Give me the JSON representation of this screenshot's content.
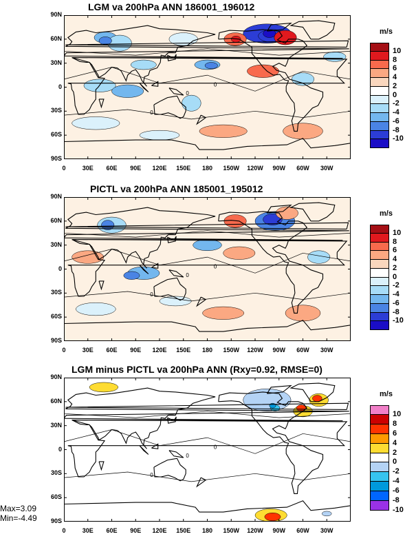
{
  "panels": [
    {
      "title": "LGM va 200hPa ANN 186001_196012",
      "scale": "diverging",
      "chart_data": {
        "type": "contour-map",
        "variable": "meridional wind (va) at 200hPa",
        "season": "ANN",
        "units": "m/s",
        "xlim": [
          "0",
          "360"
        ],
        "ylim": [
          "90S",
          "90N"
        ],
        "contour_levels": [
          -10,
          -8,
          -6,
          -4,
          -2,
          0,
          2,
          4,
          6,
          8,
          10
        ],
        "colorbar_labels": [
          "10",
          "8",
          "6",
          "4",
          "2",
          "0",
          "-2",
          "-4",
          "-6",
          "-8",
          "-10"
        ]
      }
    },
    {
      "title": "PICTL va 200hPa ANN 185001_195012",
      "scale": "diverging",
      "chart_data": {
        "type": "contour-map",
        "variable": "meridional wind (va) at 200hPa",
        "season": "ANN",
        "units": "m/s",
        "contour_levels": [
          -10,
          -8,
          -6,
          -4,
          -2,
          0,
          2,
          4,
          6,
          8,
          10
        ],
        "colorbar_labels": [
          "10",
          "8",
          "6",
          "4",
          "2",
          "0",
          "-2",
          "-4",
          "-6",
          "-8",
          "-10"
        ]
      }
    },
    {
      "title": "LGM minus PICTL va 200hPa ANN (Rxy=0.92, RMSE=0)",
      "scale": "difference",
      "chart_data": {
        "type": "contour-map",
        "variable": "difference in meridional wind at 200hPa",
        "season": "ANN",
        "units": "m/s",
        "max": 3.09,
        "min": -4.49,
        "contour_levels": [
          -10,
          -8,
          -6,
          -4,
          -2,
          0,
          2,
          4,
          6,
          8,
          10
        ],
        "colorbar_labels": [
          "10",
          "8",
          "6",
          "4",
          "2",
          "0",
          "-2",
          "-4",
          "-6",
          "-8",
          "-10"
        ]
      }
    }
  ],
  "units_label": "m/s",
  "stats": {
    "max": "Max=3.09",
    "min": "Min=-4.49"
  },
  "lat_ticks": [
    "90N",
    "60N",
    "30N",
    "0",
    "30S",
    "60S",
    "90S"
  ],
  "lon_ticks": [
    "0",
    "30E",
    "60E",
    "90E",
    "120E",
    "150E",
    "180",
    "150W",
    "120W",
    "90W",
    "60W",
    "30W"
  ],
  "contour_zero_label": "0",
  "colors": {
    "diverging": [
      "#a50f15",
      "#e0191e",
      "#f86a4d",
      "#fba882",
      "#fad7be",
      "#ffffff",
      "#dbf1fb",
      "#a7dcf7",
      "#73b7ee",
      "#4a84e4",
      "#2c3dd6",
      "#1a0dc6"
    ],
    "difference": [
      "#f17fc8",
      "#cc0000",
      "#ff3300",
      "#ff9900",
      "#fedc32",
      "#ffffff",
      "#b4d3f5",
      "#36c4ef",
      "#0099dc",
      "#0066ff",
      "#9a32e6"
    ]
  }
}
